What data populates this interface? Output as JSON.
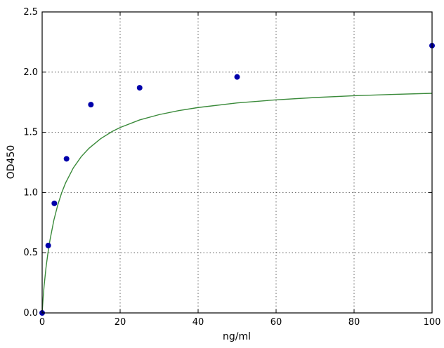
{
  "chart_data": {
    "type": "scatter",
    "title": "",
    "xlabel": "ng/ml",
    "ylabel": "OD450",
    "xlim": [
      0,
      100
    ],
    "ylim": [
      0,
      2.5
    ],
    "xticks": [
      0,
      20,
      40,
      60,
      80,
      100
    ],
    "xtick_labels": [
      "0",
      "20",
      "40",
      "60",
      "80",
      "100"
    ],
    "yticks": [
      0,
      0.5,
      1.0,
      1.5,
      2.0,
      2.5
    ],
    "ytick_labels": [
      "0.0",
      "0.5",
      "1.0",
      "1.5",
      "2.0",
      "2.5"
    ],
    "grid": true,
    "series": [
      {
        "kind": "points",
        "color": "#0000aa",
        "x": [
          0,
          1.5625,
          3.125,
          6.25,
          12.5,
          25,
          50,
          100
        ],
        "y": [
          0.0,
          0.56,
          0.91,
          1.28,
          1.73,
          1.87,
          1.96,
          2.22
        ]
      },
      {
        "kind": "fit-curve",
        "color": "#3a8a3a",
        "x": [
          0,
          0.25,
          0.5,
          1,
          1.5,
          2,
          3,
          4,
          5,
          6,
          8,
          10,
          12,
          15,
          18,
          20,
          25,
          30,
          35,
          40,
          50,
          60,
          70,
          80,
          90,
          100
        ],
        "y": [
          0.0,
          0.124,
          0.225,
          0.38,
          0.501,
          0.604,
          0.77,
          0.896,
          0.997,
          1.079,
          1.205,
          1.297,
          1.367,
          1.447,
          1.508,
          1.54,
          1.603,
          1.647,
          1.68,
          1.706,
          1.744,
          1.77,
          1.789,
          1.804,
          1.815,
          1.824
        ]
      }
    ]
  }
}
